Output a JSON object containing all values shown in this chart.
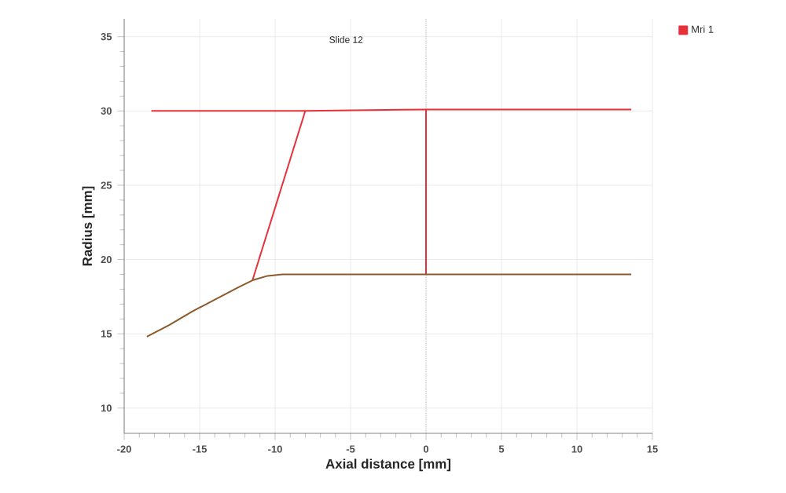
{
  "chart_data": {
    "type": "line",
    "xlabel": "Axial distance [mm]",
    "ylabel": "Radius [mm]",
    "annotations": [
      "Slide 12"
    ],
    "xlim": [
      -20,
      15
    ],
    "ylim": [
      8.3,
      36.2
    ],
    "xticks": [
      -20,
      -15,
      -10,
      -5,
      0,
      5,
      10,
      15
    ],
    "yticks": [
      10,
      15,
      20,
      25,
      30,
      35
    ],
    "grid": true,
    "legend": "top right",
    "marker": "none",
    "line_style": "solid",
    "ref_lines": [
      {
        "axis": "x",
        "value": 0,
        "color": "#999999",
        "line_style": "dotted"
      }
    ],
    "series": [
      {
        "name": "Mri 1",
        "color": "#e8303a",
        "x": [
          -18.2,
          -8,
          0,
          13.6
        ],
        "values": [
          30,
          30,
          30.1,
          30.1
        ]
      },
      {
        "color": "#e8303a",
        "x": [
          -11.5,
          -8
        ],
        "values": [
          18.6,
          30
        ]
      },
      {
        "color": "#e8303a",
        "x": [
          0,
          0
        ],
        "values": [
          19,
          30.1
        ]
      },
      {
        "color": "#8b5a2b",
        "x": [
          -18.5,
          -17,
          -15.5,
          -14,
          -12.5,
          -11.5,
          -10.5,
          -9.5,
          -8,
          13.6
        ],
        "values": [
          14.8,
          15.6,
          16.5,
          17.3,
          18.1,
          18.6,
          18.9,
          19,
          19,
          19
        ]
      }
    ]
  }
}
